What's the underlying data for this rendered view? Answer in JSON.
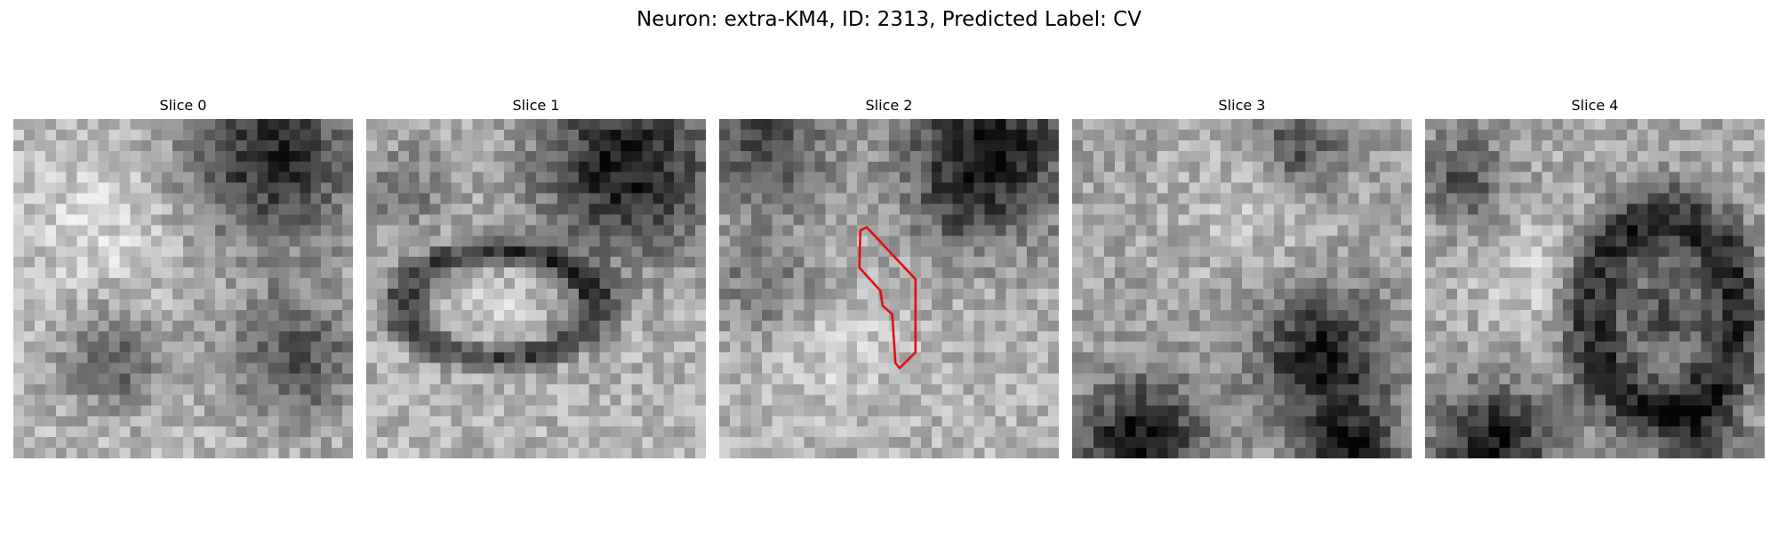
{
  "figure": {
    "title": "Neuron: extra-KM4, ID: 2313, Predicted Label: CV"
  },
  "panels": [
    {
      "label": "Slice 0",
      "seed": 11,
      "has_roi": false
    },
    {
      "label": "Slice 1",
      "seed": 23,
      "has_roi": false
    },
    {
      "label": "Slice 2",
      "seed": 37,
      "has_roi": true
    },
    {
      "label": "Slice 3",
      "seed": 51,
      "has_roi": false
    },
    {
      "label": "Slice 4",
      "seed": 67,
      "has_roi": false
    }
  ],
  "image": {
    "colormap": "grayscale",
    "grid_size": 32
  },
  "roi": {
    "outline_color": "#e01010",
    "grid_points": [
      [
        13.3,
        10.5
      ],
      [
        13.9,
        10.2
      ],
      [
        18.5,
        15.1
      ],
      [
        18.5,
        22.0
      ],
      [
        17.0,
        23.5
      ],
      [
        16.6,
        23.0
      ],
      [
        16.3,
        18.4
      ],
      [
        15.4,
        17.6
      ],
      [
        15.2,
        16.2
      ],
      [
        13.2,
        14.0
      ]
    ]
  }
}
